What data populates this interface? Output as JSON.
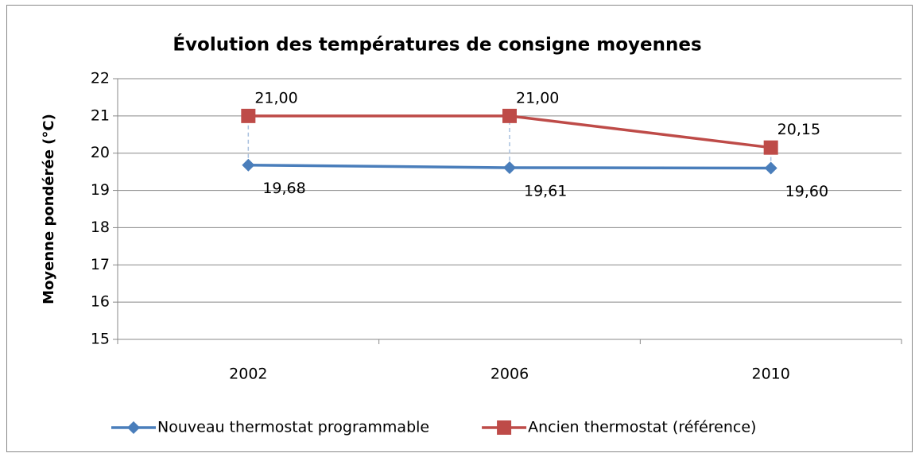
{
  "chart_data": {
    "type": "line",
    "title": "Évolution des températures de consigne moyennes",
    "ylabel": "Moyenne pondérée (°C)",
    "categories": [
      "2002",
      "2006",
      "2010"
    ],
    "series": [
      {
        "name": "Nouveau thermostat programmable",
        "color": "#4a7ebb",
        "marker": "diamond",
        "values": [
          19.68,
          19.61,
          19.6
        ],
        "value_labels": [
          "19,68",
          "19,61",
          "19,60"
        ]
      },
      {
        "name": "Ancien thermostat (référence)",
        "color": "#be4b48",
        "marker": "square",
        "values": [
          21.0,
          21.0,
          20.15
        ],
        "value_labels": [
          "21,00",
          "21,00",
          "20,15"
        ]
      }
    ],
    "ylim": [
      15,
      22
    ],
    "yticks": [
      15,
      16,
      17,
      18,
      19,
      20,
      21,
      22
    ],
    "grid": true,
    "drop_lines": true,
    "legend": "bottom"
  }
}
